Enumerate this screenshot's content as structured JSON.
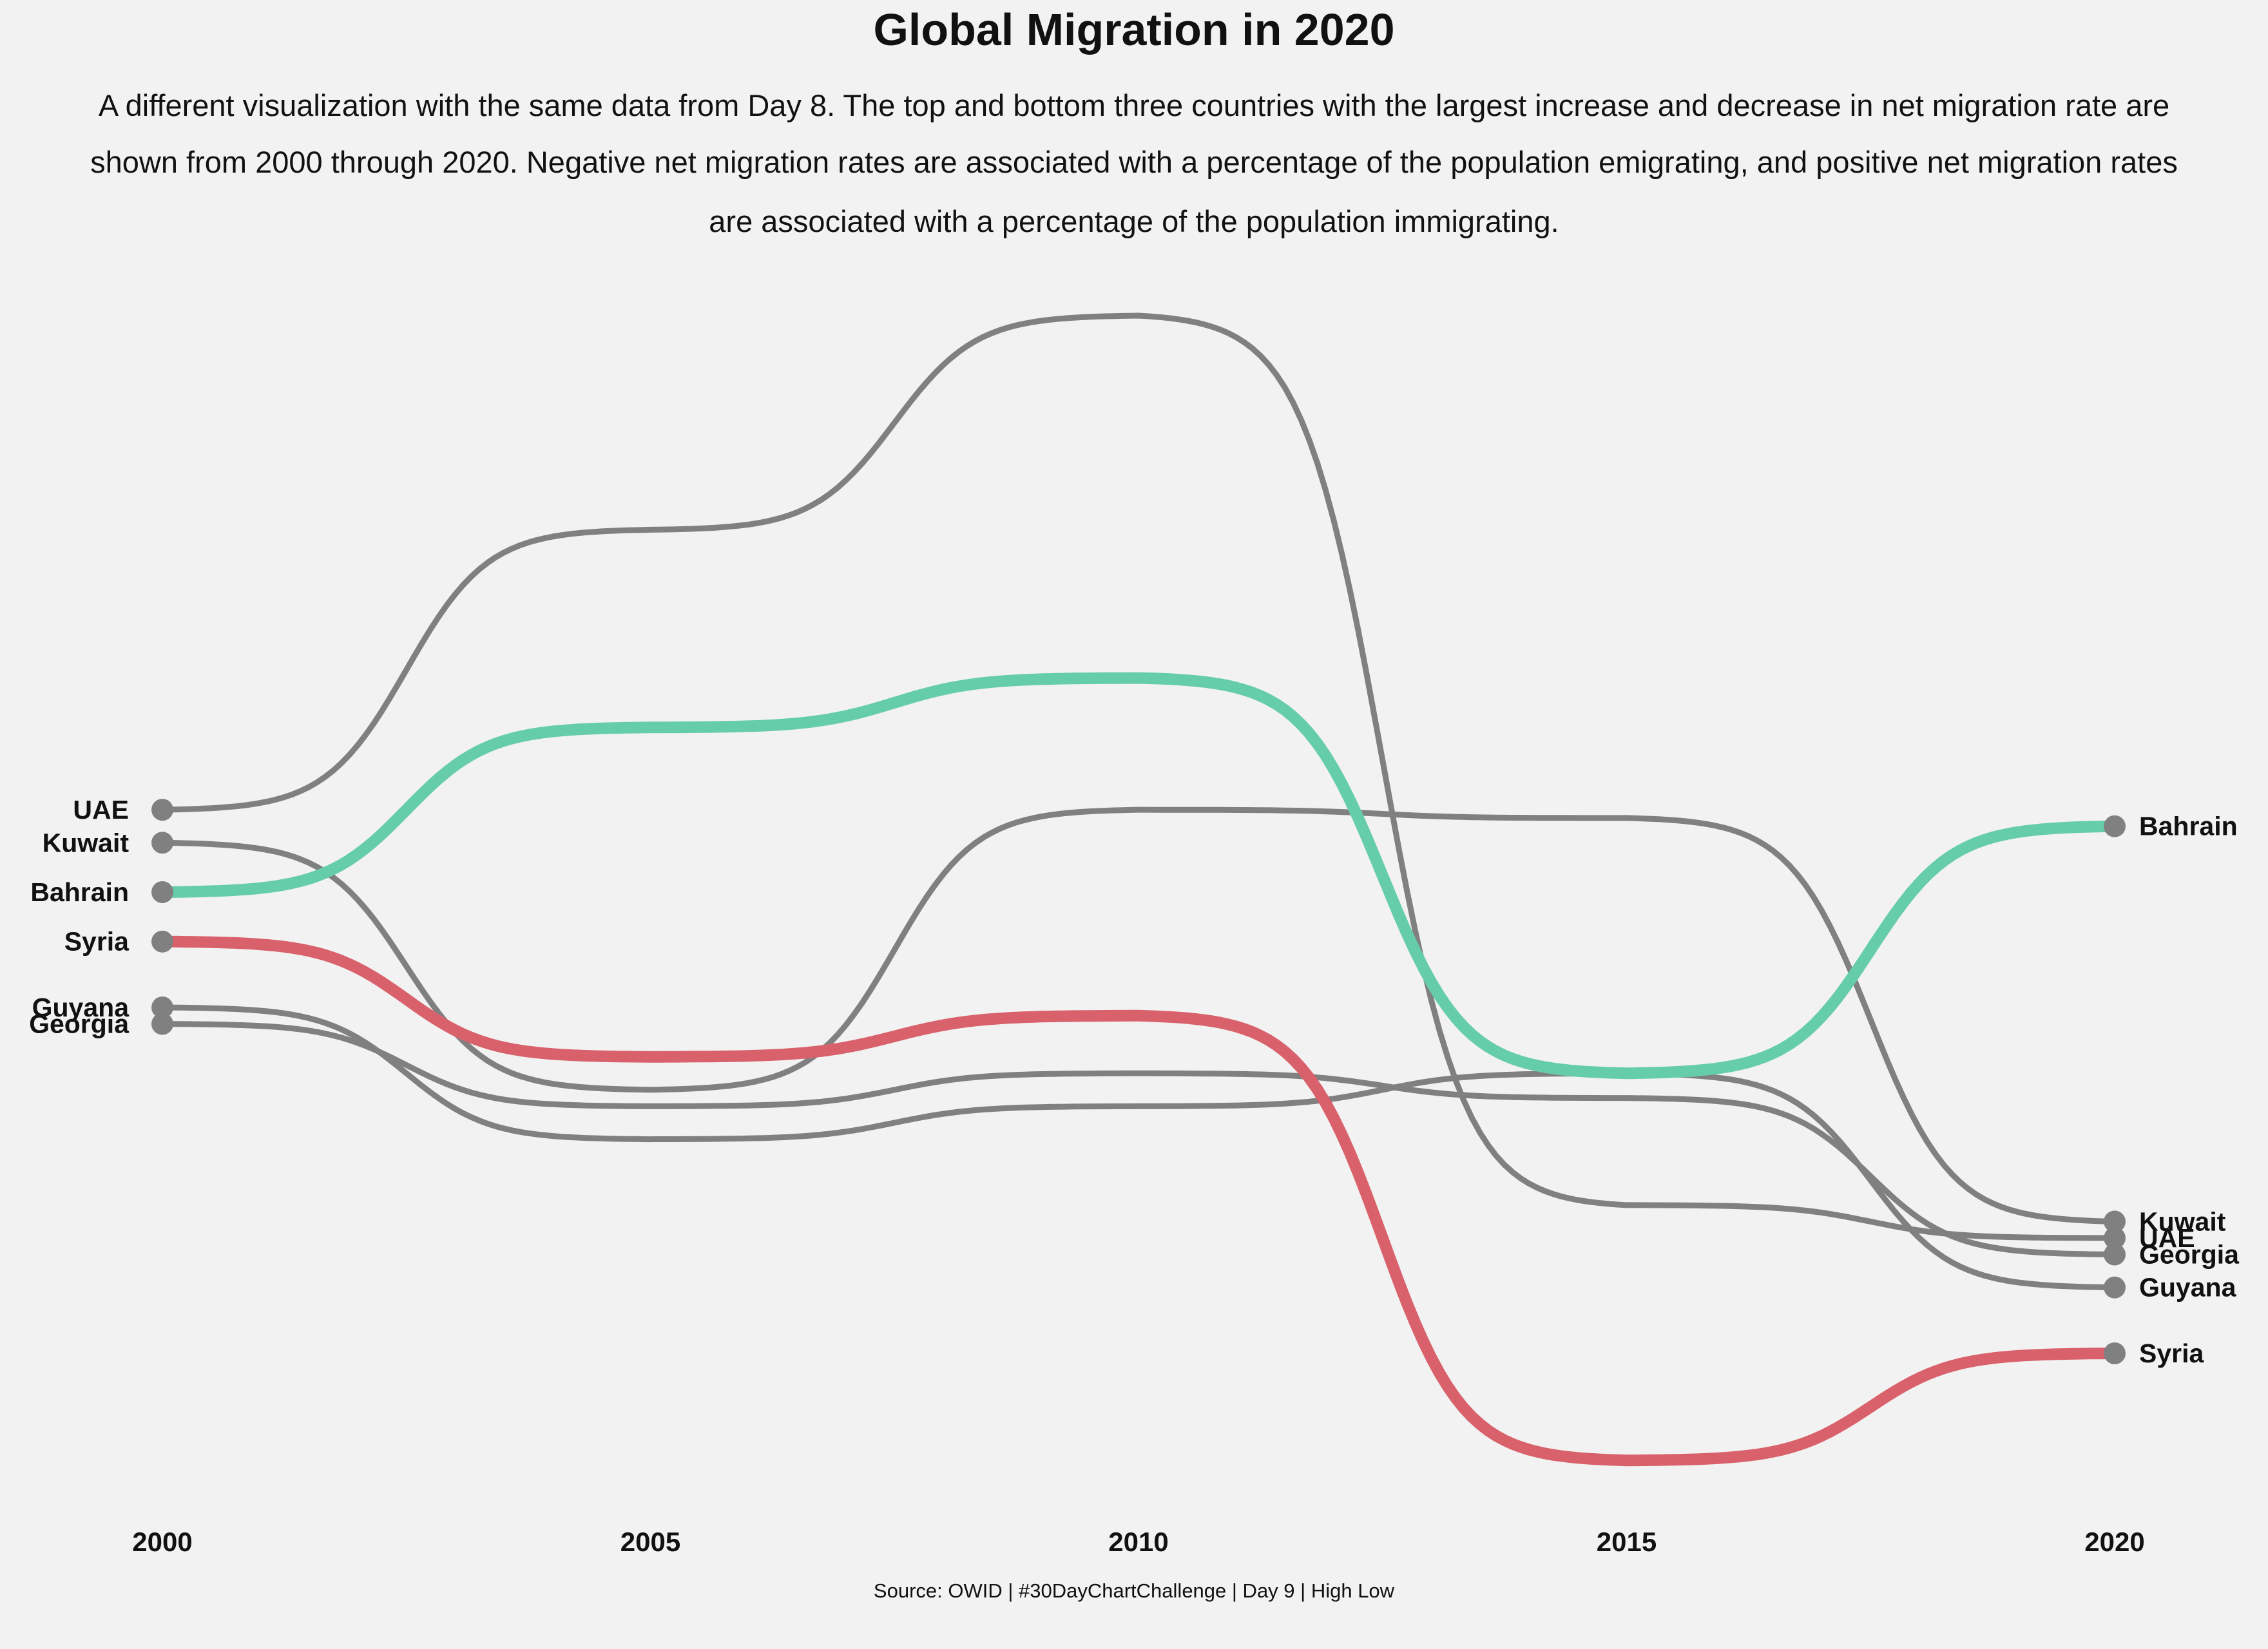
{
  "header": {
    "title": "Global Migration in 2020",
    "subtitle_lines": [
      "A different visualization with the same data  from Day 8. The top and bottom three countries with the largest increase and  decrease in  net migration  rate  are",
      "shown  from 2000 through 2020.  Negative net migration  rates are associated with a percentage of the population emigrating, and positive net migration  rates",
      "are associated with a percentage of the population immigrating."
    ]
  },
  "caption": "Source: OWID | #30DayChartChallenge | Day 9 | High Low",
  "chart_data": {
    "type": "line",
    "subtype": "bump",
    "x": [
      2000,
      2005,
      2010,
      2015,
      2020
    ],
    "x_tick_labels": [
      "2000",
      "2005",
      "2010",
      "2015",
      "2020"
    ],
    "y_axis": "rank position (1 = top, 7 = bottom)",
    "grid": false,
    "legend": "direct labels at both ends",
    "colors": {
      "default": "#808080",
      "increase": "#66cdaa",
      "decrease": "#d9616b",
      "background": "#f2f2f2"
    },
    "series": [
      {
        "name": "UAE",
        "color": "#808080",
        "highlight": false,
        "values": [
          3.0,
          1.3,
          0.0,
          5.4,
          5.6
        ]
      },
      {
        "name": "Kuwait",
        "color": "#808080",
        "highlight": false,
        "values": [
          3.2,
          4.7,
          3.0,
          3.05,
          5.5
        ]
      },
      {
        "name": "Bahrain",
        "color": "#66cdaa",
        "highlight": true,
        "values": [
          3.5,
          2.5,
          2.2,
          4.6,
          3.1
        ]
      },
      {
        "name": "Syria",
        "color": "#d9616b",
        "highlight": true,
        "values": [
          3.8,
          4.5,
          4.25,
          6.95,
          6.3
        ]
      },
      {
        "name": "Guyana",
        "color": "#808080",
        "highlight": false,
        "values": [
          4.2,
          5.0,
          4.8,
          4.6,
          5.9
        ]
      },
      {
        "name": "Georgia",
        "color": "#808080",
        "highlight": false,
        "values": [
          4.3,
          4.8,
          4.6,
          4.75,
          5.7
        ]
      }
    ]
  }
}
